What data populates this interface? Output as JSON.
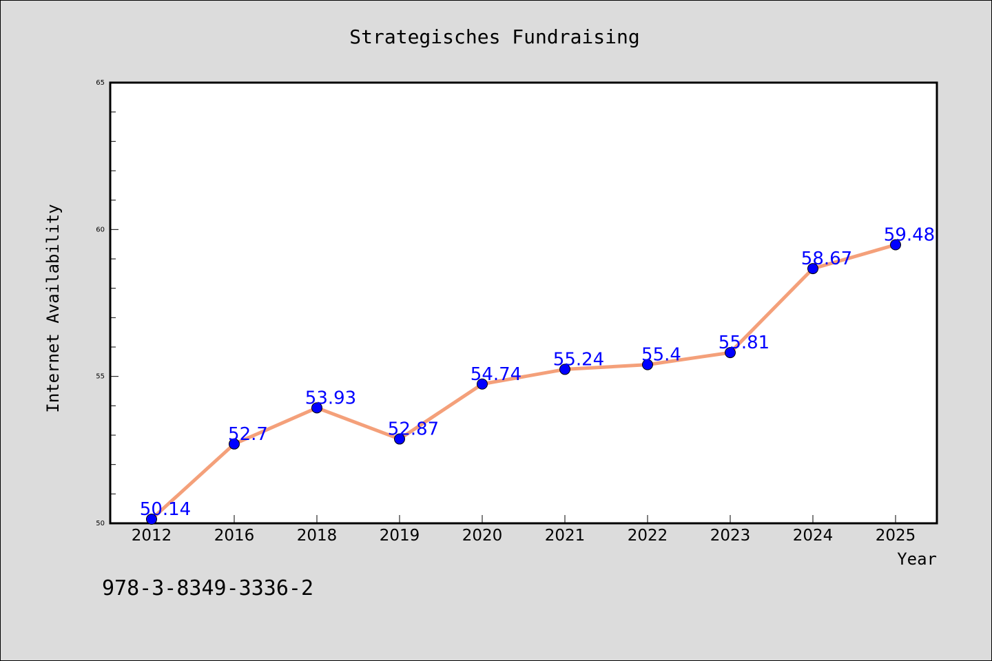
{
  "chart_data": {
    "type": "line",
    "title": "Strategisches Fundraising",
    "xlabel": "Year",
    "ylabel": "Internet Availability",
    "categories": [
      "2012",
      "2016",
      "2018",
      "2019",
      "2020",
      "2021",
      "2022",
      "2023",
      "2024",
      "2025"
    ],
    "series": [
      {
        "values": [
          50.14,
          52.7,
          53.93,
          52.87,
          54.74,
          55.24,
          55.4,
          55.81,
          58.67,
          59.48
        ],
        "line_color": "#f4a07a",
        "marker_color": "#0000ff"
      }
    ],
    "data_labels": [
      "50.14",
      "52.7",
      "53.93",
      "52.87",
      "54.74",
      "55.24",
      "55.4",
      "55.81",
      "58.67",
      "59.48"
    ],
    "ylim": [
      50,
      65
    ],
    "yticks": [
      "50",
      "55",
      "60",
      "65"
    ],
    "grid": false,
    "legend": "none",
    "background_color": "#dcdcdc",
    "plot_background_color": "#ffffff"
  },
  "footer": {
    "isbn": "978-3-8349-3336-2"
  }
}
